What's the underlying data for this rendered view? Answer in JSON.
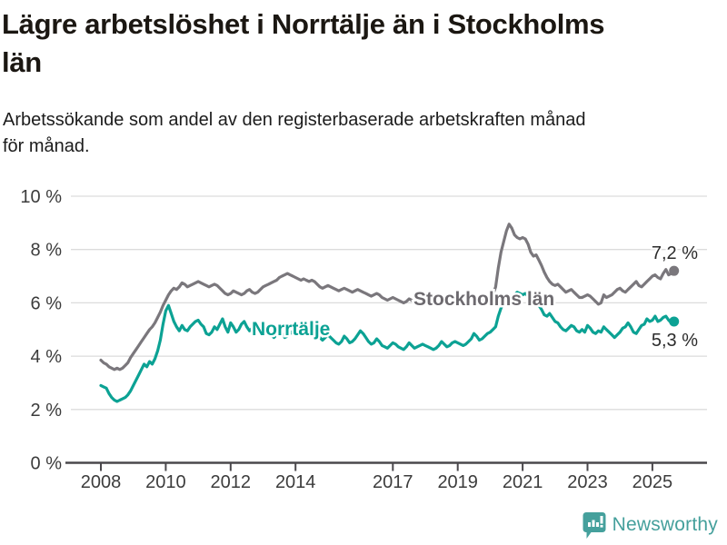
{
  "header": {
    "title": "Lägre arbetslöshet i Norrtälje än i Stockholms\nlän",
    "subtitle": "Arbetssökande som andel av den registerbaserade arbetskraften månad\nför månad."
  },
  "footer": {
    "brand": "Newsworthy",
    "brand_color": "#45a09c"
  },
  "chart_data": {
    "type": "line",
    "unit": "%",
    "frequency": "monthly",
    "x_start": "2008-01",
    "x_end": "2025-09",
    "grid": "horizontal",
    "ylim": [
      0,
      10
    ],
    "y_tick_labels": [
      "0 %",
      "2 %",
      "4 %",
      "6 %",
      "8 %",
      "10 %"
    ],
    "y_tick_values": [
      0,
      2,
      4,
      6,
      8,
      10
    ],
    "x_tick_years": [
      2008,
      2010,
      2012,
      2014,
      2017,
      2019,
      2021,
      2023,
      2025
    ],
    "series": [
      {
        "name": "Stockholms län",
        "color": "#7a777c",
        "end_value_label": "7,2 %",
        "end_value": 7.2,
        "values": [
          3.85,
          3.75,
          3.7,
          3.6,
          3.55,
          3.5,
          3.55,
          3.5,
          3.55,
          3.65,
          3.75,
          3.95,
          4.1,
          4.25,
          4.4,
          4.55,
          4.7,
          4.85,
          5.0,
          5.1,
          5.25,
          5.45,
          5.65,
          5.9,
          6.1,
          6.3,
          6.45,
          6.55,
          6.5,
          6.6,
          6.75,
          6.7,
          6.6,
          6.65,
          6.7,
          6.75,
          6.8,
          6.75,
          6.7,
          6.65,
          6.6,
          6.65,
          6.7,
          6.65,
          6.55,
          6.45,
          6.35,
          6.3,
          6.35,
          6.45,
          6.4,
          6.35,
          6.3,
          6.35,
          6.45,
          6.5,
          6.4,
          6.35,
          6.4,
          6.5,
          6.6,
          6.65,
          6.7,
          6.75,
          6.8,
          6.85,
          6.95,
          7.0,
          7.05,
          7.1,
          7.05,
          7.0,
          6.95,
          6.9,
          6.85,
          6.9,
          6.85,
          6.8,
          6.85,
          6.8,
          6.7,
          6.6,
          6.55,
          6.6,
          6.65,
          6.6,
          6.55,
          6.5,
          6.45,
          6.5,
          6.55,
          6.5,
          6.45,
          6.4,
          6.45,
          6.5,
          6.45,
          6.4,
          6.35,
          6.3,
          6.25,
          6.3,
          6.35,
          6.3,
          6.2,
          6.15,
          6.1,
          6.15,
          6.2,
          6.15,
          6.1,
          6.05,
          6.0,
          6.05,
          6.15,
          6.1,
          6.0,
          5.95,
          6.0,
          6.05,
          6.1,
          6.05,
          6.0,
          5.95,
          5.95,
          6.0,
          6.1,
          6.05,
          5.95,
          5.95,
          6.0,
          6.05,
          6.1,
          6.05,
          6.0,
          6.0,
          6.05,
          6.1,
          6.2,
          6.15,
          6.1,
          6.1,
          6.15,
          6.2,
          6.25,
          6.3,
          6.6,
          7.3,
          7.9,
          8.3,
          8.7,
          8.95,
          8.8,
          8.55,
          8.45,
          8.4,
          8.45,
          8.4,
          8.2,
          7.9,
          7.75,
          7.8,
          7.6,
          7.4,
          7.15,
          6.95,
          6.8,
          6.7,
          6.65,
          6.7,
          6.6,
          6.5,
          6.4,
          6.45,
          6.5,
          6.4,
          6.3,
          6.2,
          6.2,
          6.25,
          6.3,
          6.25,
          6.15,
          6.05,
          5.95,
          6.0,
          6.3,
          6.2,
          6.25,
          6.3,
          6.4,
          6.5,
          6.55,
          6.45,
          6.4,
          6.5,
          6.6,
          6.7,
          6.8,
          6.65,
          6.6,
          6.7,
          6.8,
          6.9,
          7.0,
          7.05,
          6.95,
          6.9,
          7.1,
          7.25,
          7.05,
          7.1,
          7.2
        ]
      },
      {
        "name": "Norrtälje",
        "color": "#0ca294",
        "end_value_label": "5,3 %",
        "end_value": 5.3,
        "values": [
          2.9,
          2.85,
          2.8,
          2.6,
          2.45,
          2.35,
          2.3,
          2.35,
          2.4,
          2.45,
          2.55,
          2.7,
          2.9,
          3.1,
          3.3,
          3.5,
          3.7,
          3.6,
          3.8,
          3.7,
          3.9,
          4.2,
          4.6,
          5.2,
          5.7,
          5.9,
          5.6,
          5.3,
          5.1,
          4.95,
          5.15,
          5.0,
          4.95,
          5.1,
          5.2,
          5.3,
          5.35,
          5.2,
          5.1,
          4.85,
          4.8,
          4.9,
          5.1,
          5.0,
          5.2,
          5.4,
          5.1,
          4.9,
          5.25,
          5.1,
          4.9,
          5.0,
          5.2,
          5.3,
          5.1,
          4.95,
          5.05,
          5.15,
          5.0,
          5.1,
          5.15,
          5.0,
          4.9,
          4.8,
          4.7,
          4.8,
          4.95,
          4.85,
          4.7,
          4.75,
          4.85,
          4.95,
          5.05,
          5.15,
          5.3,
          5.2,
          5.0,
          4.9,
          5.05,
          4.95,
          4.8,
          4.7,
          4.6,
          4.7,
          4.8,
          4.7,
          4.6,
          4.5,
          4.45,
          4.55,
          4.75,
          4.65,
          4.5,
          4.55,
          4.65,
          4.8,
          4.95,
          4.85,
          4.7,
          4.55,
          4.45,
          4.5,
          4.65,
          4.55,
          4.4,
          4.35,
          4.3,
          4.4,
          4.5,
          4.45,
          4.35,
          4.3,
          4.25,
          4.35,
          4.5,
          4.4,
          4.3,
          4.35,
          4.4,
          4.45,
          4.4,
          4.35,
          4.3,
          4.25,
          4.3,
          4.4,
          4.55,
          4.45,
          4.35,
          4.4,
          4.5,
          4.55,
          4.5,
          4.45,
          4.4,
          4.45,
          4.55,
          4.65,
          4.85,
          4.75,
          4.6,
          4.65,
          4.75,
          4.85,
          4.9,
          5.0,
          5.1,
          5.5,
          5.8,
          6.0,
          6.2,
          6.3,
          6.2,
          6.3,
          6.4,
          6.35,
          6.3,
          6.35,
          6.25,
          6.1,
          5.95,
          6.0,
          5.9,
          5.75,
          5.55,
          5.5,
          5.6,
          5.45,
          5.3,
          5.25,
          5.1,
          5.0,
          4.95,
          5.05,
          5.15,
          5.1,
          4.95,
          4.9,
          5.0,
          4.9,
          5.15,
          5.05,
          4.9,
          4.85,
          4.95,
          4.9,
          5.1,
          5.0,
          4.9,
          4.8,
          4.7,
          4.8,
          4.9,
          5.05,
          5.1,
          5.25,
          5.1,
          4.9,
          4.85,
          5.0,
          5.15,
          5.2,
          5.4,
          5.3,
          5.35,
          5.5,
          5.3,
          5.35,
          5.45,
          5.5,
          5.35,
          5.25,
          5.3
        ]
      }
    ],
    "colors": {
      "grid": "#dcdcdc",
      "axis": "#4a484c",
      "tick_text": "#3c3c3c",
      "value_label_text": "#2b2b2b"
    }
  }
}
